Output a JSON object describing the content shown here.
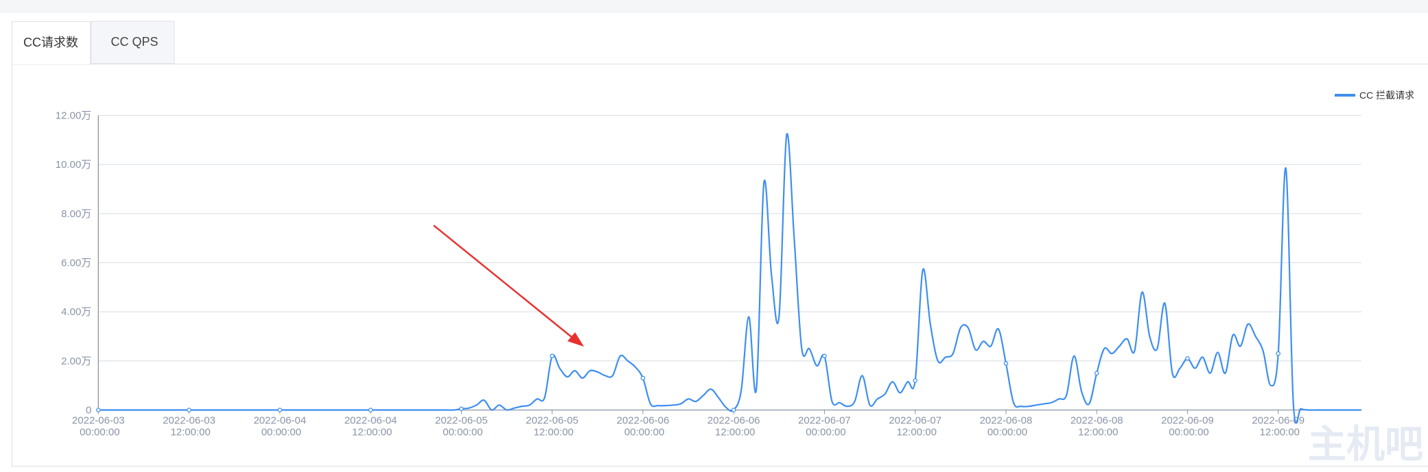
{
  "tabs": [
    "CC请求数",
    "CC QPS"
  ],
  "watermark": "主机吧",
  "chart_data": {
    "type": "line",
    "categories": [
      "2022-06-03 00:00:00",
      null,
      null,
      null,
      null,
      null,
      null,
      null,
      null,
      null,
      null,
      null,
      "2022-06-03 12:00:00",
      null,
      null,
      null,
      null,
      null,
      null,
      null,
      null,
      null,
      null,
      null,
      "2022-06-04 00:00:00",
      null,
      null,
      null,
      null,
      null,
      null,
      null,
      null,
      null,
      null,
      null,
      "2022-06-04 12:00:00",
      null,
      null,
      null,
      null,
      null,
      null,
      null,
      null,
      null,
      null,
      null,
      "2022-06-05 00:00:00",
      null,
      null,
      null,
      null,
      null,
      null,
      null,
      null,
      null,
      null,
      null,
      "2022-06-05 12:00:00",
      null,
      null,
      null,
      null,
      null,
      null,
      null,
      null,
      null,
      null,
      null,
      "2022-06-06 00:00:00",
      null,
      null,
      null,
      null,
      null,
      null,
      null,
      null,
      null,
      null,
      null,
      "2022-06-06 12:00:00",
      null,
      null,
      null,
      null,
      null,
      null,
      null,
      null,
      null,
      null,
      null,
      "2022-06-07 00:00:00",
      null,
      null,
      null,
      null,
      null,
      null,
      null,
      null,
      null,
      null,
      null,
      "2022-06-07 12:00:00",
      null,
      null,
      null,
      null,
      null,
      null,
      null,
      null,
      null,
      null,
      null,
      "2022-06-08 00:00:00",
      null,
      null,
      null,
      null,
      null,
      null,
      null,
      null,
      null,
      null,
      null,
      "2022-06-08 12:00:00",
      null,
      null,
      null,
      null,
      null,
      null,
      null,
      null,
      null,
      null,
      null,
      "2022-06-09 00:00:00",
      null,
      null,
      null,
      null,
      null,
      null,
      null,
      null,
      null,
      null,
      null,
      "2022-06-09 12:00:00",
      null,
      null,
      null,
      null,
      null,
      null,
      null,
      null,
      null,
      null,
      null
    ],
    "series": [
      {
        "name": "CC 拦截请求",
        "color": "#3d8ef0",
        "values": [
          0,
          0,
          0,
          0,
          0,
          0,
          0,
          0,
          0,
          0,
          0,
          0,
          0,
          0,
          0,
          0,
          0,
          0,
          0,
          0,
          0,
          0,
          0,
          0,
          0,
          0,
          0,
          0,
          0,
          0,
          0,
          0,
          0,
          0,
          0,
          0,
          0,
          0,
          0,
          0,
          0,
          0,
          0,
          0,
          0,
          0,
          0,
          0,
          500,
          800,
          2000,
          4000,
          0,
          2000,
          0,
          800,
          1500,
          2000,
          4500,
          5000,
          22000,
          17000,
          13500,
          16000,
          13000,
          16000,
          15500,
          14000,
          14000,
          22000,
          20000,
          17500,
          13000,
          2500,
          1800,
          1800,
          2000,
          2500,
          4500,
          3500,
          6000,
          8500,
          5000,
          1000,
          0,
          8000,
          38000,
          8500,
          92500,
          55000,
          38000,
          112000,
          70000,
          25000,
          25000,
          18000,
          22000,
          3500,
          3000,
          1500,
          3500,
          14000,
          2000,
          4500,
          6500,
          11500,
          7000,
          11500,
          12000,
          57000,
          35000,
          20000,
          21500,
          23000,
          33500,
          33500,
          24500,
          28000,
          26000,
          33000,
          19000,
          3000,
          1500,
          1500,
          2000,
          2500,
          3000,
          4500,
          6000,
          22000,
          7500,
          2500,
          15000,
          25000,
          23000,
          26000,
          29000,
          24000,
          48000,
          30000,
          25000,
          43500,
          15000,
          17000,
          21000,
          17000,
          21500,
          15000,
          23500,
          15000,
          30500,
          26000,
          35000,
          30000,
          24000,
          10000,
          23000,
          98500,
          2500,
          500,
          0,
          0,
          0,
          0,
          0,
          0,
          0,
          0
        ]
      }
    ],
    "ylim": [
      0,
      120000
    ],
    "yticks": [
      0,
      {
        "value": 20000,
        "label": "2.00万"
      },
      {
        "value": 40000,
        "label": "4.00万"
      },
      {
        "value": 60000,
        "label": "6.00万"
      },
      {
        "value": 80000,
        "label": "8.00万"
      },
      {
        "value": 100000,
        "label": "10.00万"
      },
      {
        "value": 120000,
        "label": "12.00万"
      }
    ],
    "grid": true,
    "smooth": true,
    "legend": "top-right"
  }
}
